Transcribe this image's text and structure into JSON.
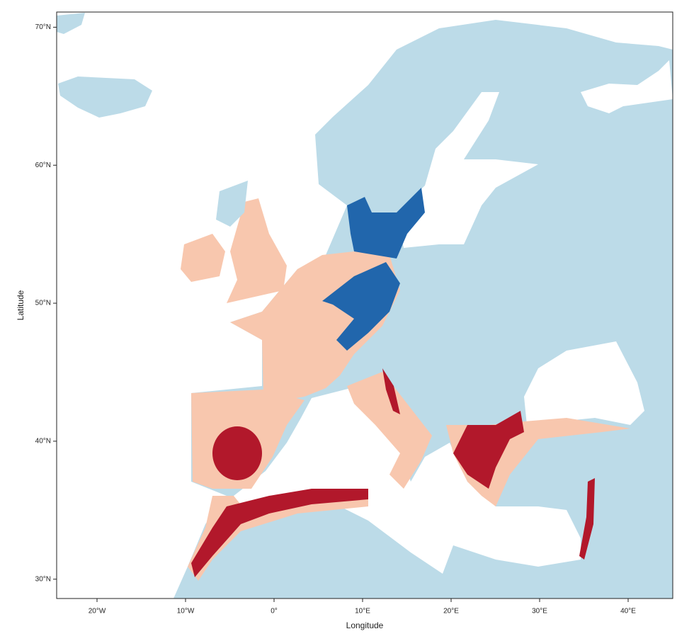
{
  "chart_data": {
    "type": "map",
    "xlabel": "Longitude",
    "ylabel": "Latitude",
    "xlim": [
      -24.56,
      45.04
    ],
    "ylim": [
      28.6,
      71.1
    ],
    "xticks": [
      {
        "value": -20,
        "label": "20°W"
      },
      {
        "value": -10,
        "label": "10°W"
      },
      {
        "value": 0,
        "label": "0°"
      },
      {
        "value": 10,
        "label": "10°E"
      },
      {
        "value": 20,
        "label": "20°E"
      },
      {
        "value": 30,
        "label": "30°E"
      },
      {
        "value": 40,
        "label": "40°E"
      }
    ],
    "yticks": [
      {
        "value": 30,
        "label": "30°N"
      },
      {
        "value": 40,
        "label": "40°N"
      },
      {
        "value": 50,
        "label": "50°N"
      },
      {
        "value": 60,
        "label": "60°N"
      },
      {
        "value": 70,
        "label": "70°N"
      }
    ]
  }
}
